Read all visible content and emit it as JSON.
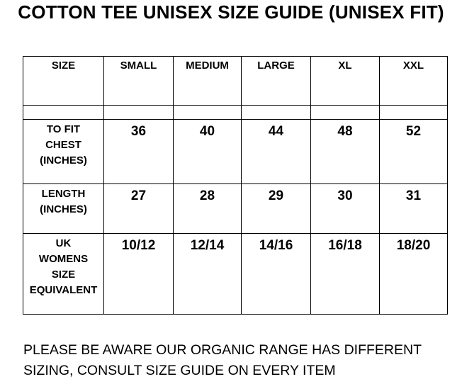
{
  "title": "COTTON TEE UNISEX SIZE GUIDE (UNISEX FIT)",
  "table": {
    "headers": [
      "SIZE",
      "SMALL",
      "MEDIUM",
      "LARGE",
      "XL",
      "XXL"
    ],
    "rows": [
      {
        "label": [
          "TO FIT",
          "CHEST",
          "(INCHES)"
        ],
        "values": [
          "36",
          "40",
          "44",
          "48",
          "52"
        ]
      },
      {
        "label": [
          "LENGTH",
          "(INCHES)"
        ],
        "values": [
          "27",
          "28",
          "29",
          "30",
          "31"
        ]
      },
      {
        "label": [
          "UK",
          "WOMENS",
          "SIZE",
          "EQUIVALENT"
        ],
        "values": [
          "10/12",
          "12/14",
          "14/16",
          "16/18",
          "18/20"
        ]
      }
    ]
  },
  "note": [
    "PLEASE BE AWARE OUR ORGANIC RANGE HAS DIFFERENT",
    "SIZING, CONSULT SIZE GUIDE ON EVERY ITEM"
  ]
}
